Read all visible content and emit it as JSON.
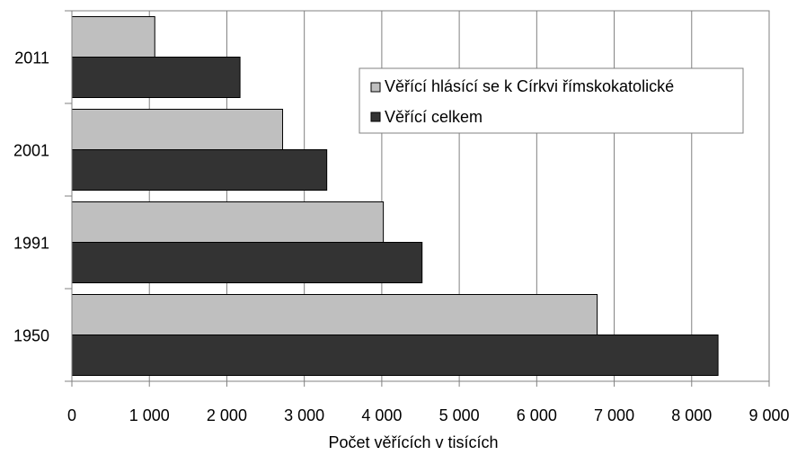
{
  "chart_data": {
    "type": "bar",
    "orientation": "horizontal",
    "title": "",
    "xlabel": "Počet věřících v tisících",
    "ylabel": "",
    "categories": [
      "1950",
      "1991",
      "2001",
      "2011"
    ],
    "series": [
      {
        "name": "Věřící hlásící se k Církvi římskokatolické",
        "color": "#bfbfbf",
        "values": [
          6780,
          4020,
          2720,
          1070
        ]
      },
      {
        "name": "Věřící celkem",
        "color": "#333333",
        "values": [
          8340,
          4520,
          3290,
          2170
        ]
      }
    ],
    "xlim": [
      0,
      9000
    ],
    "xticks": [
      0,
      1000,
      2000,
      3000,
      4000,
      5000,
      6000,
      7000,
      8000,
      9000
    ],
    "xtick_labels": [
      "0",
      "1 000",
      "2 000",
      "3 000",
      "4 000",
      "5 000",
      "6 000",
      "7 000",
      "8 000",
      "9 000"
    ],
    "grid": "vertical",
    "legend_position": "top-right"
  }
}
